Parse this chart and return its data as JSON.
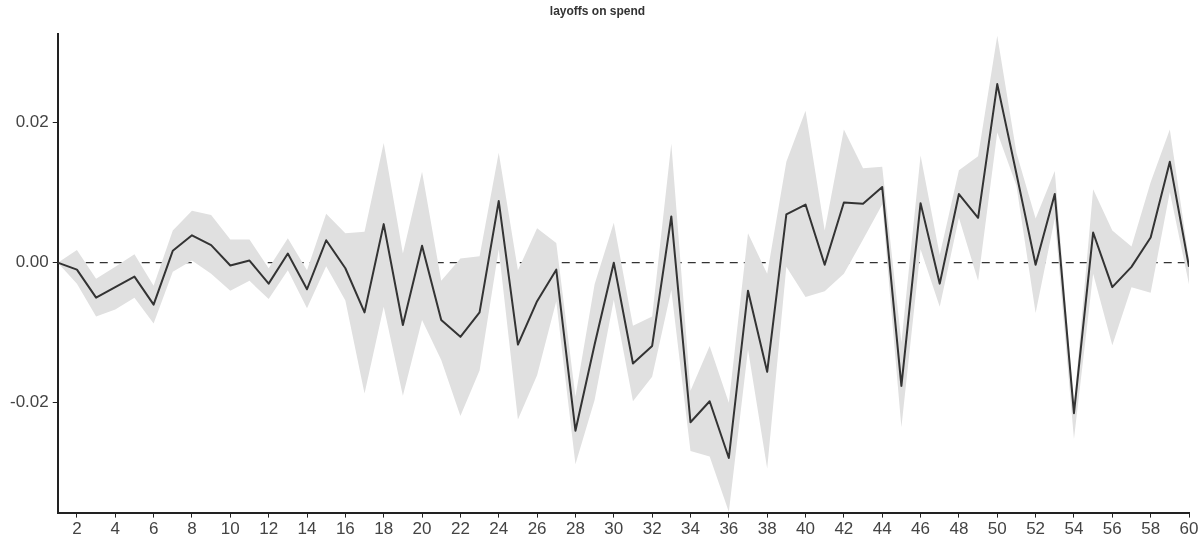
{
  "chart_data": {
    "type": "line",
    "title": "layoffs on spend",
    "x": [
      1,
      2,
      3,
      4,
      5,
      6,
      7,
      8,
      9,
      10,
      11,
      12,
      13,
      14,
      15,
      16,
      17,
      18,
      19,
      20,
      21,
      22,
      23,
      24,
      25,
      26,
      27,
      28,
      29,
      30,
      31,
      32,
      33,
      34,
      35,
      36,
      37,
      38,
      39,
      40,
      41,
      42,
      43,
      44,
      45,
      46,
      47,
      48,
      49,
      50,
      51,
      52,
      53,
      54,
      55,
      56,
      57,
      58,
      59,
      60
    ],
    "series": [
      {
        "color": "#333333",
        "values": [
          0,
          -0.001,
          -0.005,
          -0.0035,
          -0.002,
          -0.006,
          0.0017,
          0.0039,
          0.0025,
          -0.0004,
          0.0003,
          -0.003,
          0.0013,
          -0.0038,
          0.0032,
          -0.0008,
          -0.0071,
          0.0055,
          -0.0089,
          0.0024,
          -0.0082,
          -0.0106,
          -0.0071,
          0.0088,
          -0.0117,
          -0.0055,
          -0.001,
          -0.024,
          -0.0117,
          0,
          -0.0144,
          -0.0119,
          0.0066,
          -0.0228,
          -0.0198,
          -0.0279,
          -0.004,
          -0.0156,
          0.0069,
          0.0083,
          -0.0003,
          0.0086,
          0.0084,
          0.0108,
          -0.0176,
          0.0085,
          -0.003,
          0.0098,
          0.0064,
          0.0255,
          0.0127,
          -0.0003,
          0.0098,
          -0.0215,
          0.0043,
          -0.0035,
          -0.0006,
          0.0036,
          0.0144,
          -0.0006
        ],
        "lower": [
          0,
          -0.003,
          -0.0077,
          -0.0067,
          -0.005,
          -0.0087,
          -0.0013,
          0.0003,
          -0.0016,
          -0.004,
          -0.0026,
          -0.0052,
          -0.0011,
          -0.0065,
          -0.0005,
          -0.0054,
          -0.0187,
          -0.0063,
          -0.019,
          -0.0082,
          -0.0139,
          -0.0219,
          -0.0154,
          0.0019,
          -0.0224,
          -0.0161,
          -0.0055,
          -0.0288,
          -0.0196,
          -0.0053,
          -0.0198,
          -0.0163,
          -0.0039,
          -0.0269,
          -0.0277,
          -0.0356,
          -0.0124,
          -0.0294,
          -0.0006,
          -0.0049,
          -0.0041,
          -0.0016,
          0.0033,
          0.0083,
          -0.0235,
          0.0019,
          -0.0063,
          0.0064,
          -0.0026,
          0.0186,
          0.011,
          -0.0072,
          0.0063,
          -0.0252,
          -0.0016,
          -0.0118,
          -0.0035,
          -0.0043,
          0.0101,
          -0.0031
        ],
        "upper": [
          0,
          0.0018,
          -0.0023,
          -0.0006,
          0.0012,
          -0.0033,
          0.0046,
          0.0074,
          0.0068,
          0.0033,
          0.0033,
          -0.0008,
          0.0035,
          -0.0011,
          0.007,
          0.0042,
          0.0044,
          0.0171,
          0.0013,
          0.013,
          -0.0026,
          0.0006,
          0.0009,
          0.0157,
          -0.0011,
          0.0049,
          0.0028,
          -0.0191,
          -0.0031,
          0.0057,
          -0.009,
          -0.0077,
          0.017,
          -0.0183,
          -0.0119,
          -0.02,
          0.0042,
          -0.0016,
          0.0144,
          0.0217,
          0.0046,
          0.019,
          0.0135,
          0.0137,
          -0.0114,
          0.0153,
          0.0011,
          0.0132,
          0.0152,
          0.0324,
          0.0157,
          0.0063,
          0.0131,
          -0.0205,
          0.0105,
          0.0046,
          0.0023,
          0.0115,
          0.019,
          0.0004
        ]
      }
    ],
    "xlim": [
      1,
      60
    ],
    "xticks": [
      2,
      4,
      6,
      8,
      10,
      12,
      14,
      16,
      18,
      20,
      22,
      24,
      26,
      28,
      30,
      32,
      34,
      36,
      38,
      40,
      42,
      44,
      46,
      48,
      50,
      52,
      54,
      56,
      58,
      60
    ],
    "ylim": [
      -0.0357,
      0.0326
    ],
    "yticks": [
      {
        "value": -0.02,
        "label": "-0.02"
      },
      {
        "value": 0,
        "label": "0.00"
      },
      {
        "value": 0.02,
        "label": "0.02"
      }
    ],
    "ref_lines": [
      {
        "axis": "y",
        "value": 0,
        "color": "#333333",
        "line_style": "dashed"
      }
    ],
    "grid": false,
    "legend": false,
    "marker": "none",
    "line_style": "solid"
  }
}
